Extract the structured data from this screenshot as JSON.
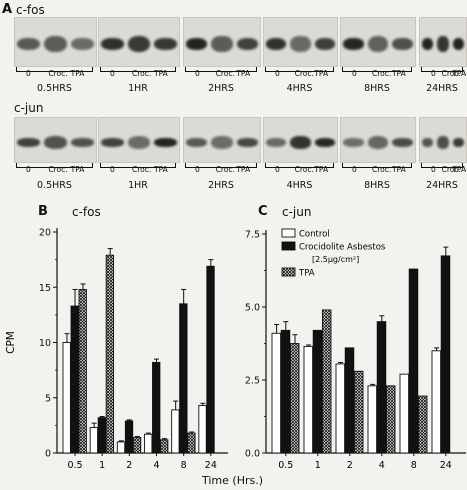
{
  "figure": {
    "panel_a": "A",
    "panel_b": "B",
    "panel_c": "C",
    "gene_fos": "c-fos",
    "gene_jun": "c-jun",
    "lanes": [
      "0",
      "Croc.",
      "TPA"
    ],
    "timepoints_fos": [
      "0.5HRS",
      "1HR",
      "2HRS",
      "4HRS",
      "8HRS",
      "24HRS"
    ],
    "timepoints_jun": [
      "0.5HRS",
      "1HR",
      "2HRS",
      "4HRS",
      "8HRS",
      "24HRS"
    ],
    "xlabel_shared": "Time (Hrs.)"
  },
  "chart_data": [
    {
      "type": "bar",
      "title": "c-fos",
      "ylabel": "CPM",
      "xlabel": "Time (Hrs.)",
      "categories": [
        "0.5",
        "1",
        "2",
        "4",
        "8",
        "24"
      ],
      "ylim": [
        0,
        20
      ],
      "yticks": [
        "0",
        "5",
        "10",
        "15",
        "20"
      ],
      "series": [
        {
          "name": "Control",
          "values": [
            10.0,
            2.3,
            1.0,
            1.7,
            3.9,
            4.3
          ],
          "err": [
            0.8,
            0.4,
            0.1,
            0.1,
            0.8,
            0.2
          ]
        },
        {
          "name": "Crocidolite Asbestos",
          "values": [
            13.3,
            3.2,
            2.9,
            8.2,
            13.5,
            16.9
          ],
          "err": [
            1.5,
            0.1,
            0.1,
            0.3,
            1.3,
            0.6
          ]
        },
        {
          "name": "TPA",
          "values": [
            14.8,
            17.9,
            1.4,
            1.2,
            1.8,
            0.0
          ],
          "err": [
            0.5,
            0.6,
            0.1,
            0.1,
            0.1,
            0.0
          ]
        }
      ]
    },
    {
      "type": "bar",
      "title": "c-jun",
      "xlabel": "Time (Hrs.)",
      "categories": [
        "0.5",
        "1",
        "2",
        "4",
        "8",
        "24"
      ],
      "ylim": [
        0,
        7.5
      ],
      "yticks": [
        "0.0",
        "2.5",
        "5.0",
        "7.5"
      ],
      "legend": {
        "control": "Control",
        "asbestos": "Crocidolite Asbestos",
        "dose": "[2.5μg/cm²]",
        "tpa": "TPA",
        "placement": "top-right"
      },
      "series": [
        {
          "name": "Control",
          "values": [
            4.1,
            3.65,
            3.05,
            2.3,
            2.7,
            3.5
          ],
          "err": [
            0.3,
            0.05,
            0.05,
            0.05,
            0.0,
            0.1
          ]
        },
        {
          "name": "Crocidolite Asbestos",
          "values": [
            4.2,
            4.2,
            3.6,
            4.5,
            6.3,
            6.75
          ],
          "err": [
            0.3,
            0.0,
            0.0,
            0.2,
            0.0,
            0.3
          ]
        },
        {
          "name": "TPA",
          "values": [
            3.75,
            4.9,
            2.8,
            2.3,
            1.95,
            0.0
          ],
          "err": [
            0.3,
            0.0,
            0.0,
            0.0,
            0.0,
            0.0
          ]
        }
      ]
    }
  ]
}
